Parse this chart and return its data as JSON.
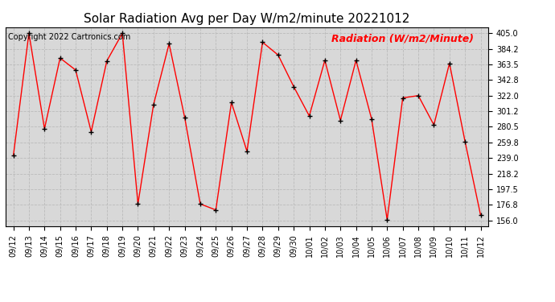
{
  "title": "Solar Radiation Avg per Day W/m2/minute 20221012",
  "copyright": "Copyright 2022 Cartronics.com",
  "legend_label": "Radiation (W/m2/Minute)",
  "dates": [
    "09/12",
    "09/13",
    "09/14",
    "09/15",
    "09/16",
    "09/17",
    "09/18",
    "09/19",
    "09/20",
    "09/21",
    "09/22",
    "09/23",
    "09/24",
    "09/25",
    "09/26",
    "09/27",
    "09/28",
    "09/29",
    "09/30",
    "10/01",
    "10/02",
    "10/03",
    "10/04",
    "10/05",
    "10/06",
    "10/07",
    "10/08",
    "10/09",
    "10/10",
    "10/11",
    "10/12"
  ],
  "values": [
    242,
    405,
    278,
    372,
    356,
    274,
    368,
    405,
    178,
    310,
    391,
    293,
    178,
    170,
    313,
    248,
    393,
    376,
    334,
    295,
    369,
    289,
    369,
    291,
    157,
    319,
    322,
    283,
    365,
    261,
    163
  ],
  "line_color": "red",
  "marker_color": "black",
  "grid_color": "#bbbbbb",
  "bg_color": "#ffffff",
  "plot_bg_color": "#d8d8d8",
  "yticks": [
    156.0,
    176.8,
    197.5,
    218.2,
    239.0,
    259.8,
    280.5,
    301.2,
    322.0,
    342.8,
    363.5,
    384.2,
    405.0
  ],
  "ylim_min": 148,
  "ylim_max": 413,
  "title_fontsize": 11,
  "legend_fontsize": 9,
  "copyright_fontsize": 7,
  "tick_fontsize": 7
}
